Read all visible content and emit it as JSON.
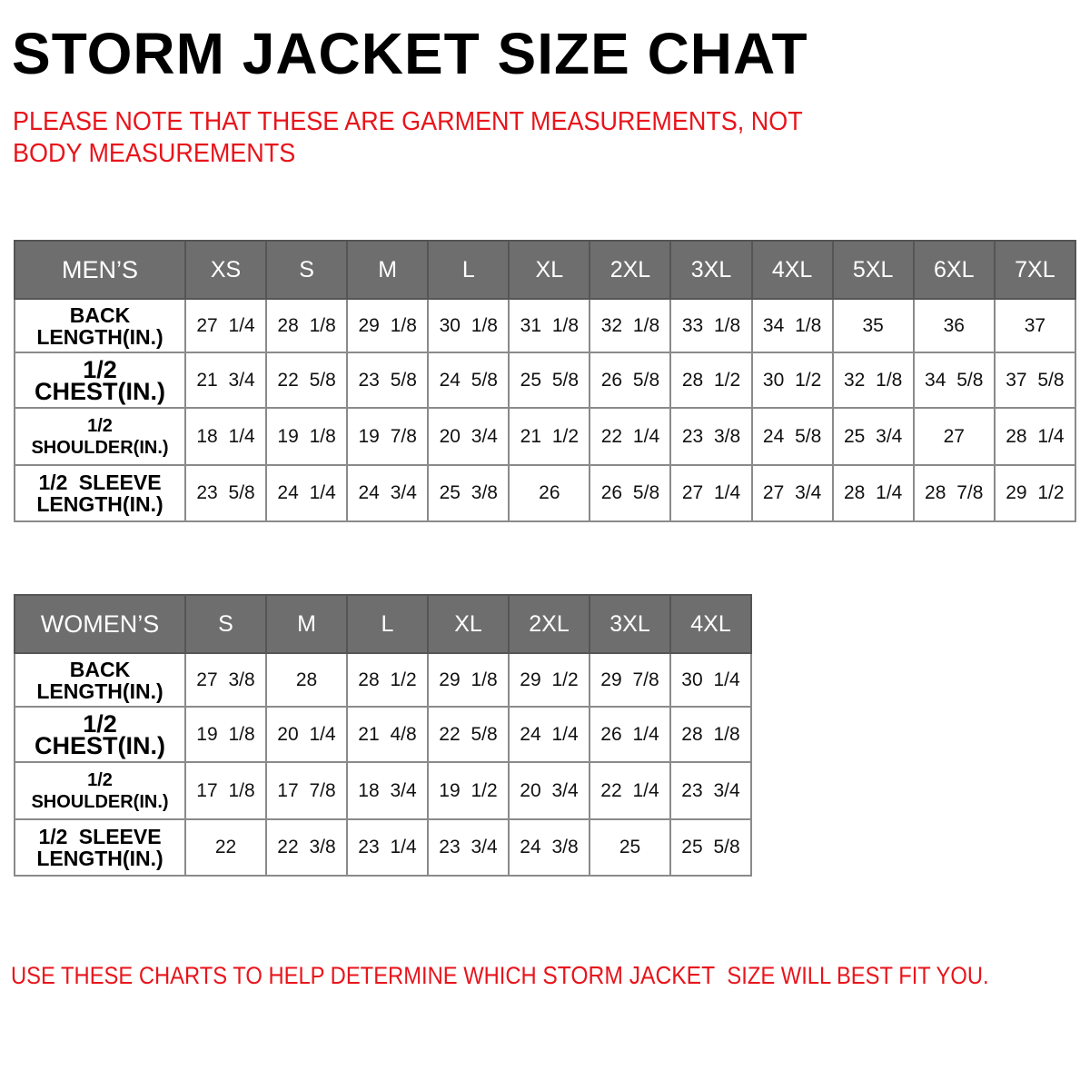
{
  "title": "STORM JACKET SIZE CHAT",
  "note": "PLEASE NOTE THAT THESE ARE GARMENT MEASUREMENTS, NOT BODY MEASUREMENTS",
  "colors": {
    "header_bg": "#6e6e6e",
    "accent_red": "#e8141b"
  },
  "mens": {
    "label": "MEN’S",
    "sizes": [
      "XS",
      "S",
      "M",
      "L",
      "XL",
      "2XL",
      "3XL",
      "4XL",
      "5XL",
      "6XL",
      "7XL"
    ],
    "rows": [
      {
        "label": "BACK LENGTH(IN.)",
        "values": [
          "27 1/4",
          "28 1/8",
          "29 1/8",
          "30 1/8",
          "31 1/8",
          "32 1/8",
          "33 1/8",
          "34 1/8",
          "35",
          "36",
          "37"
        ]
      },
      {
        "label": "1/2 CHEST(IN.)",
        "values": [
          "21 3/4",
          "22 5/8",
          "23 5/8",
          "24 5/8",
          "25 5/8",
          "26 5/8",
          "28 1/2",
          "30 1/2",
          "32 1/8",
          "34 5/8",
          "37 5/8"
        ]
      },
      {
        "label": "1/2 SHOULDER(IN.)",
        "values": [
          "18 1/4",
          "19 1/8",
          "19 7/8",
          "20 3/4",
          "21 1/2",
          "22 1/4",
          "23 3/8",
          "24 5/8",
          "25 3/4",
          "27",
          "28 1/4"
        ]
      },
      {
        "label": "1/2 SLEEVE LENGTH(IN.)",
        "values": [
          "23 5/8",
          "24 1/4",
          "24 3/4",
          "25 3/8",
          "26",
          "26 5/8",
          "27 1/4",
          "27 3/4",
          "28 1/4",
          "28 7/8",
          "29 1/2"
        ]
      }
    ]
  },
  "womens": {
    "label": "WOMEN’S",
    "sizes": [
      "S",
      "M",
      "L",
      "XL",
      "2XL",
      "3XL",
      "4XL"
    ],
    "rows": [
      {
        "label": "BACK LENGTH(IN.)",
        "values": [
          "27 3/8",
          "28",
          "28 1/2",
          "29 1/8",
          "29 1/2",
          "29 7/8",
          "30 1/4"
        ]
      },
      {
        "label": "1/2 CHEST(IN.)",
        "values": [
          "19 1/8",
          "20 1/4",
          "21 4/8",
          "22 5/8",
          "24 1/4",
          "26 1/4",
          "28 1/8"
        ]
      },
      {
        "label": "1/2 SHOULDER(IN.)",
        "values": [
          "17 1/8",
          "17 7/8",
          "18 3/4",
          "19 1/2",
          "20 3/4",
          "22 1/4",
          "23 3/4"
        ]
      },
      {
        "label": "1/2 SLEEVE LENGTH(IN.)",
        "values": [
          "22",
          "22 3/8",
          "23 1/4",
          "23 3/4",
          "24 3/8",
          "25",
          "25 5/8"
        ]
      }
    ]
  },
  "footer": {
    "before": "USE THESE CHARTS TO HELP DETERMINE WHICH ",
    "highlight": "STORM JACKET",
    "after": "  SIZE WILL BEST FIT YOU."
  }
}
